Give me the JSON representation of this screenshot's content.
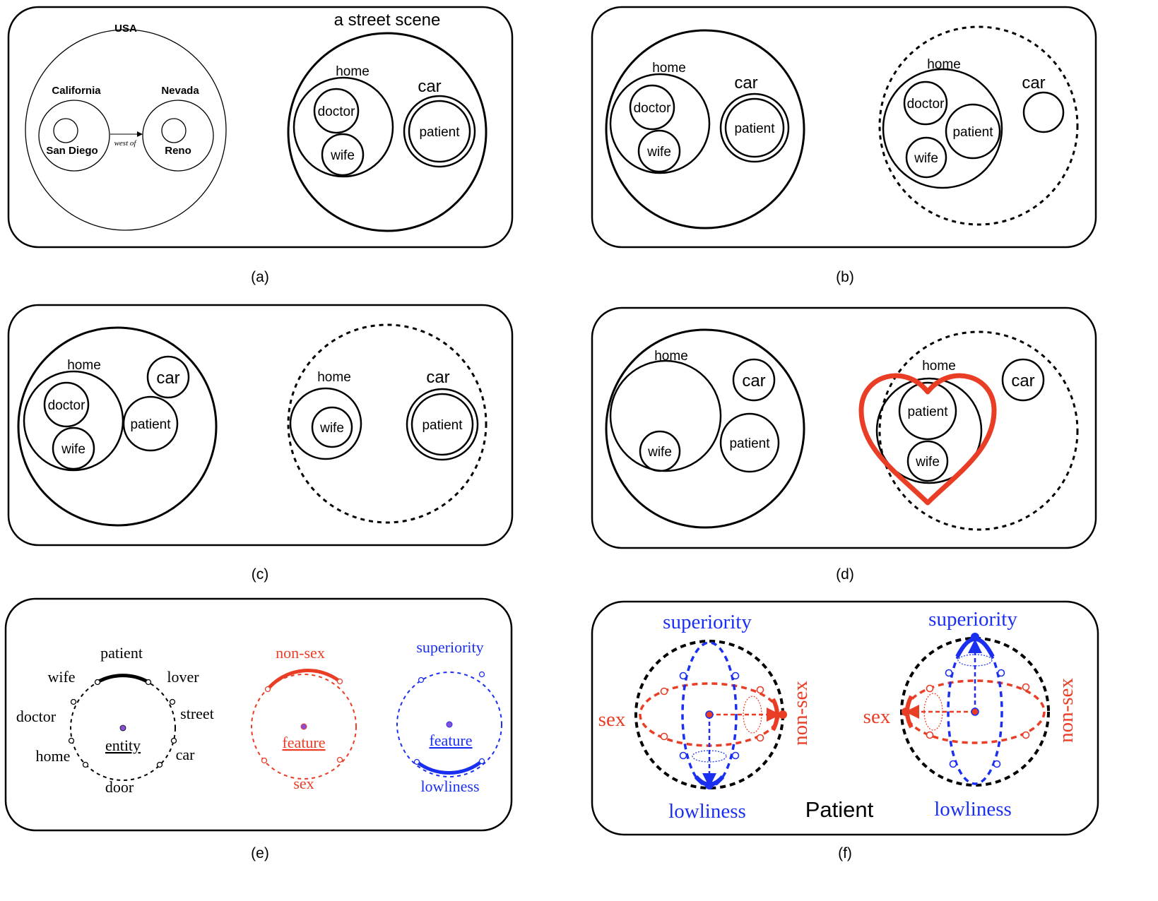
{
  "panels": {
    "a": {
      "caption": "(a)",
      "usa": "USA",
      "california": "California",
      "nevada": "Nevada",
      "san_diego": "San Diego",
      "reno": "Reno",
      "west_of": "west of",
      "street_scene": "a street scene",
      "home": "home",
      "doctor": "doctor",
      "wife": "wife",
      "car": "car",
      "patient": "patient"
    },
    "b": {
      "caption": "(b)",
      "left": {
        "home": "home",
        "doctor": "doctor",
        "wife": "wife",
        "car": "car",
        "patient": "patient"
      },
      "right": {
        "home": "home",
        "doctor": "doctor",
        "patient": "patient",
        "wife": "wife",
        "car": "car"
      }
    },
    "c": {
      "caption": "(c)",
      "left": {
        "home": "home",
        "doctor": "doctor",
        "wife": "wife",
        "car": "car",
        "patient": "patient"
      },
      "right": {
        "home": "home",
        "wife": "wife",
        "car": "car",
        "patient": "patient"
      }
    },
    "d": {
      "caption": "(d)",
      "left": {
        "home": "home",
        "wife": "wife",
        "car": "car",
        "patient": "patient"
      },
      "right": {
        "home": "home",
        "patient": "patient",
        "wife": "wife",
        "car": "car"
      },
      "heart_color": "#ea3d25"
    },
    "e": {
      "caption": "(e)",
      "entity_circle": {
        "center": "entity",
        "labels": [
          "patient",
          "wife",
          "lover",
          "doctor",
          "street",
          "home",
          "car",
          "door"
        ]
      },
      "sex_circle": {
        "center": "feature",
        "top": "non-sex",
        "bottom": "sex",
        "color": "#ea3d25"
      },
      "rank_circle": {
        "center": "feature",
        "top": "superiority",
        "bottom": "lowliness",
        "color": "#1a2ff0"
      }
    },
    "f": {
      "caption": "(f)",
      "left_sphere": {
        "top": "superiority",
        "bottom": "lowliness",
        "left": "sex",
        "right": "non-sex"
      },
      "right_sphere": {
        "top": "superiority",
        "bottom": "lowliness",
        "left": "sex",
        "right": "non-sex"
      },
      "title": "Patient"
    }
  },
  "colors": {
    "red": "#ea3d25",
    "blue": "#1a2ff0",
    "purple": "#8a4fd8"
  }
}
